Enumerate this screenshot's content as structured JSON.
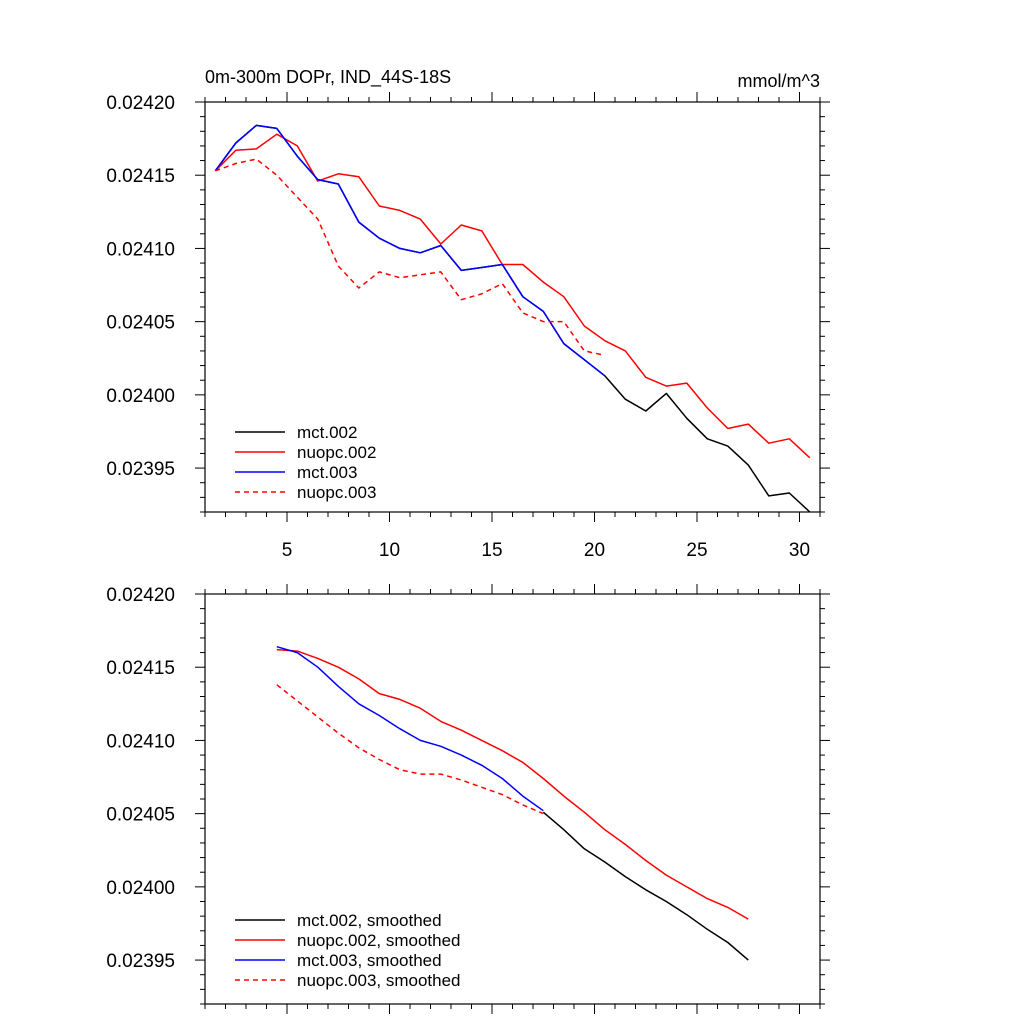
{
  "chart_data": [
    {
      "type": "line",
      "title": "0m-300m DOPr, IND_44S-18S",
      "units": "mmol/m^3",
      "xlim": [
        1,
        31
      ],
      "ylim": [
        0.02392,
        0.0242
      ],
      "xticks": [
        5,
        10,
        15,
        20,
        25,
        30
      ],
      "yticks": [
        0.02395,
        0.024,
        0.02405,
        0.0241,
        0.02415,
        0.0242
      ],
      "ytick_labels": [
        "0.02395",
        "0.02400",
        "0.02405",
        "0.02410",
        "0.02415",
        "0.02420"
      ],
      "legend": "bottom-left",
      "series": [
        {
          "name": "mct.002",
          "color": "#000000",
          "dash": false,
          "x": [
            1.5,
            2.5,
            3.5,
            4.5,
            5.5,
            6.5,
            7.5,
            8.5,
            9.5,
            10.5,
            11.5,
            12.5,
            13.5,
            14.5,
            15.5,
            16.5,
            17.5,
            18.5,
            19.5,
            20.5,
            21.5,
            22.5,
            23.5,
            24.5,
            25.5,
            26.5,
            27.5,
            28.5,
            29.5,
            30.5
          ],
          "y": [
            0.024153,
            0.024172,
            0.024184,
            0.024182,
            0.024163,
            0.024147,
            0.024144,
            0.024118,
            0.024107,
            0.0241,
            0.024097,
            0.024102,
            0.024085,
            0.024087,
            0.024089,
            0.024067,
            0.024057,
            0.024035,
            0.024024,
            0.024013,
            0.023997,
            0.023989,
            0.024001,
            0.023984,
            0.02397,
            0.023965,
            0.023952,
            0.023931,
            0.023933,
            0.02392
          ]
        },
        {
          "name": "nuopc.002",
          "color": "#ff0000",
          "dash": false,
          "x": [
            1.5,
            2.5,
            3.5,
            4.5,
            5.5,
            6.5,
            7.5,
            8.5,
            9.5,
            10.5,
            11.5,
            12.5,
            13.5,
            14.5,
            15.5,
            16.5,
            17.5,
            18.5,
            19.5,
            20.5,
            21.5,
            22.5,
            23.5,
            24.5,
            25.5,
            26.5,
            27.5,
            28.5,
            29.5,
            30.5
          ],
          "y": [
            0.024153,
            0.024167,
            0.024168,
            0.024178,
            0.02417,
            0.024146,
            0.024151,
            0.024149,
            0.024129,
            0.024126,
            0.02412,
            0.024103,
            0.024116,
            0.024112,
            0.024089,
            0.024089,
            0.024077,
            0.024067,
            0.024047,
            0.024037,
            0.02403,
            0.024012,
            0.024006,
            0.024008,
            0.023991,
            0.023977,
            0.02398,
            0.023967,
            0.02397,
            0.023957
          ]
        },
        {
          "name": "mct.003",
          "color": "#0000ff",
          "dash": false,
          "x": [
            1.5,
            2.5,
            3.5,
            4.5,
            5.5,
            6.5,
            7.5,
            8.5,
            9.5,
            10.5,
            11.5,
            12.5,
            13.5,
            14.5,
            15.5,
            16.5,
            17.5,
            18.5,
            19.5,
            20.5
          ],
          "y": [
            0.024153,
            0.024172,
            0.024184,
            0.024182,
            0.024163,
            0.024147,
            0.024144,
            0.024118,
            0.024107,
            0.0241,
            0.024097,
            0.024102,
            0.024085,
            0.024087,
            0.024089,
            0.024067,
            0.024057,
            0.024035,
            0.024024,
            0.024013
          ]
        },
        {
          "name": "nuopc.003",
          "color": "#ff0000",
          "dash": true,
          "x": [
            1.5,
            2.5,
            3.5,
            4.5,
            5.5,
            6.5,
            7.5,
            8.5,
            9.5,
            10.5,
            11.5,
            12.5,
            13.5,
            14.5,
            15.5,
            16.5,
            17.5,
            18.5,
            19.5,
            20.5
          ],
          "y": [
            0.024153,
            0.024158,
            0.024161,
            0.02415,
            0.024135,
            0.02412,
            0.024088,
            0.024073,
            0.024084,
            0.02408,
            0.024082,
            0.024084,
            0.024065,
            0.024069,
            0.024076,
            0.024056,
            0.02405,
            0.02405,
            0.02403,
            0.024027
          ]
        }
      ]
    },
    {
      "type": "line",
      "xlim": [
        1,
        31
      ],
      "ylim": [
        0.02392,
        0.0242
      ],
      "xticks": [
        5,
        10,
        15,
        20,
        25,
        30
      ],
      "yticks": [
        0.02395,
        0.024,
        0.02405,
        0.0241,
        0.02415,
        0.0242
      ],
      "ytick_labels": [
        "0.02395",
        "0.02400",
        "0.02405",
        "0.02410",
        "0.02415",
        "0.02420"
      ],
      "legend": "bottom-left",
      "series": [
        {
          "name": "mct.002, smoothed",
          "color": "#000000",
          "dash": false,
          "x": [
            17.5,
            18.5,
            19.5,
            20.5,
            21.5,
            22.5,
            23.5,
            24.5,
            25.5,
            26.5,
            27.5
          ],
          "y": [
            0.024051,
            0.024039,
            0.024026,
            0.024017,
            0.024007,
            0.023998,
            0.02399,
            0.023981,
            0.023971,
            0.023962,
            0.02395
          ]
        },
        {
          "name": "nuopc.002, smoothed",
          "color": "#ff0000",
          "dash": false,
          "x": [
            4.5,
            5.5,
            6.5,
            7.5,
            8.5,
            9.5,
            10.5,
            11.5,
            12.5,
            13.5,
            14.5,
            15.5,
            16.5,
            17.5,
            18.5,
            19.5,
            20.5,
            21.5,
            22.5,
            23.5,
            24.5,
            25.5,
            26.5,
            27.5
          ],
          "y": [
            0.024162,
            0.024161,
            0.024156,
            0.02415,
            0.024142,
            0.024132,
            0.024128,
            0.024122,
            0.024113,
            0.024107,
            0.0241,
            0.024093,
            0.024085,
            0.024074,
            0.024062,
            0.024051,
            0.024039,
            0.024029,
            0.024018,
            0.024008,
            0.024,
            0.023992,
            0.023986,
            0.023978
          ]
        },
        {
          "name": "mct.003, smoothed",
          "color": "#0000ff",
          "dash": false,
          "x": [
            4.5,
            5.5,
            6.5,
            7.5,
            8.5,
            9.5,
            10.5,
            11.5,
            12.5,
            13.5,
            14.5,
            15.5,
            16.5,
            17.5
          ],
          "y": [
            0.024164,
            0.02416,
            0.02415,
            0.024137,
            0.024125,
            0.024117,
            0.024108,
            0.0241,
            0.024096,
            0.02409,
            0.024083,
            0.024074,
            0.024062,
            0.024052
          ]
        },
        {
          "name": "nuopc.003, smoothed",
          "color": "#ff0000",
          "dash": true,
          "x": [
            4.5,
            5.5,
            6.5,
            7.5,
            8.5,
            9.5,
            10.5,
            11.5,
            12.5,
            13.5,
            14.5,
            15.5,
            16.5,
            17.5
          ],
          "y": [
            0.024138,
            0.024127,
            0.024116,
            0.024105,
            0.024095,
            0.024087,
            0.02408,
            0.024077,
            0.024077,
            0.024073,
            0.024068,
            0.024063,
            0.024056,
            0.02405
          ]
        }
      ]
    }
  ]
}
